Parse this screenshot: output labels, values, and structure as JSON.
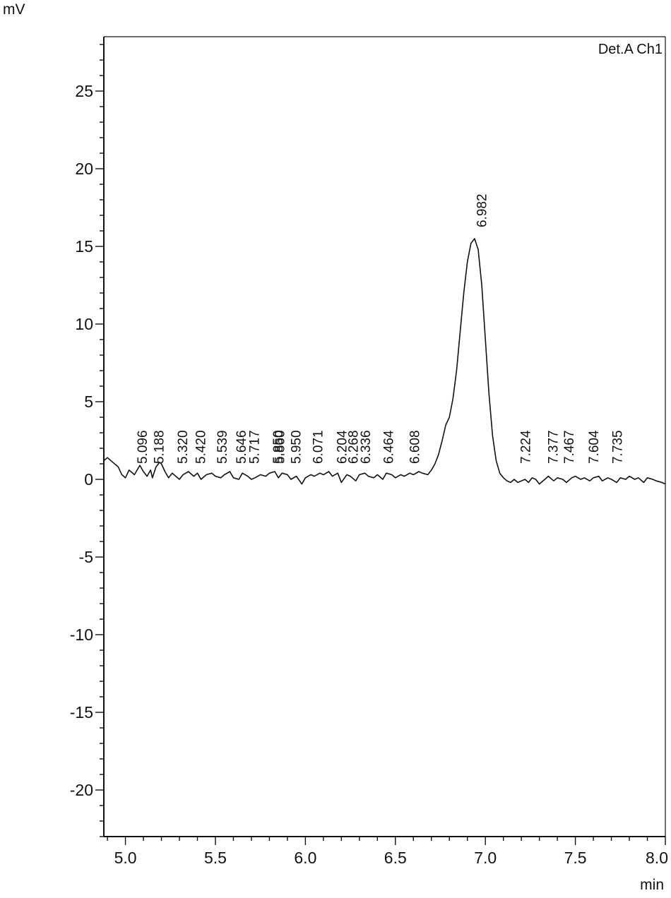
{
  "chart_data": {
    "type": "line",
    "title": "",
    "legend": "Det.A Ch1",
    "ylabel": "mV",
    "xlabel": "min",
    "xlim": [
      4.88,
      8.0
    ],
    "ylim": [
      -23.0,
      28.5
    ],
    "x_ticks": [
      "5.0",
      "5.5",
      "6.0",
      "6.5",
      "7.0",
      "7.5",
      "8.0"
    ],
    "y_ticks": [
      "25",
      "20",
      "15",
      "10",
      "5",
      "0",
      "-5",
      "-10",
      "-15",
      "-20"
    ],
    "peak_labels": [
      {
        "x": 5.096,
        "label": "5.096"
      },
      {
        "x": 5.188,
        "label": "5.188"
      },
      {
        "x": 5.32,
        "label": "5.320"
      },
      {
        "x": 5.42,
        "label": "5.420"
      },
      {
        "x": 5.539,
        "label": "5.539"
      },
      {
        "x": 5.646,
        "label": "5.646"
      },
      {
        "x": 5.717,
        "label": "5.717"
      },
      {
        "x": 5.85,
        "label": "5.850"
      },
      {
        "x": 5.86,
        "label": "5.860"
      },
      {
        "x": 5.95,
        "label": "5.950"
      },
      {
        "x": 6.071,
        "label": "6.071"
      },
      {
        "x": 6.204,
        "label": "6.204"
      },
      {
        "x": 6.268,
        "label": "6.268"
      },
      {
        "x": 6.336,
        "label": "6.336"
      },
      {
        "x": 6.464,
        "label": "6.464"
      },
      {
        "x": 6.608,
        "label": "6.608"
      },
      {
        "x": 6.982,
        "label": "6.982",
        "main": true
      },
      {
        "x": 7.224,
        "label": "7.224"
      },
      {
        "x": 7.377,
        "label": "7.377"
      },
      {
        "x": 7.467,
        "label": "7.467"
      },
      {
        "x": 7.604,
        "label": "7.604"
      },
      {
        "x": 7.735,
        "label": "7.735"
      }
    ],
    "series": [
      {
        "x": [
          4.88,
          4.9,
          4.93,
          4.96,
          4.98,
          5.0,
          5.02,
          5.05,
          5.08,
          5.1,
          5.12,
          5.14,
          5.15,
          5.17,
          5.19,
          5.2,
          5.22,
          5.24,
          5.26,
          5.28,
          5.3,
          5.32,
          5.35,
          5.38,
          5.4,
          5.42,
          5.45,
          5.48,
          5.5,
          5.53,
          5.55,
          5.58,
          5.6,
          5.63,
          5.65,
          5.68,
          5.7,
          5.72,
          5.75,
          5.78,
          5.8,
          5.83,
          5.85,
          5.87,
          5.9,
          5.92,
          5.95,
          5.98,
          6.0,
          6.03,
          6.05,
          6.08,
          6.1,
          6.13,
          6.15,
          6.18,
          6.2,
          6.23,
          6.25,
          6.28,
          6.3,
          6.33,
          6.35,
          6.38,
          6.4,
          6.43,
          6.45,
          6.48,
          6.5,
          6.53,
          6.55,
          6.58,
          6.6,
          6.63,
          6.65,
          6.68,
          6.7,
          6.72,
          6.74,
          6.76,
          6.78,
          6.8,
          6.82,
          6.84,
          6.86,
          6.88,
          6.9,
          6.92,
          6.94,
          6.96,
          6.98,
          7.0,
          7.02,
          7.04,
          7.06,
          7.08,
          7.1,
          7.12,
          7.14,
          7.16,
          7.18,
          7.2,
          7.22,
          7.24,
          7.26,
          7.28,
          7.3,
          7.33,
          7.35,
          7.38,
          7.4,
          7.43,
          7.45,
          7.48,
          7.5,
          7.53,
          7.55,
          7.58,
          7.6,
          7.63,
          7.65,
          7.68,
          7.7,
          7.73,
          7.75,
          7.78,
          7.8,
          7.83,
          7.85,
          7.88,
          7.9,
          7.93,
          7.95,
          7.98,
          8.0
        ],
        "y": [
          1.2,
          1.4,
          1.1,
          0.8,
          0.3,
          0.1,
          0.6,
          0.3,
          0.9,
          0.5,
          0.2,
          0.6,
          0.1,
          0.8,
          1.1,
          1.0,
          0.5,
          0.1,
          0.4,
          0.2,
          0.0,
          0.3,
          0.5,
          0.2,
          0.4,
          0.0,
          0.3,
          0.4,
          0.2,
          0.1,
          0.3,
          0.5,
          0.1,
          0.0,
          0.4,
          0.2,
          0.0,
          0.1,
          0.3,
          0.2,
          0.4,
          0.5,
          0.1,
          0.4,
          0.3,
          0.0,
          0.2,
          -0.3,
          0.1,
          0.3,
          0.2,
          0.4,
          0.3,
          0.5,
          0.2,
          0.4,
          -0.2,
          0.3,
          0.2,
          -0.1,
          0.3,
          0.4,
          0.2,
          0.1,
          0.3,
          0.0,
          0.4,
          0.3,
          0.1,
          0.3,
          0.2,
          0.4,
          0.3,
          0.5,
          0.4,
          0.3,
          0.6,
          1.0,
          1.6,
          2.5,
          3.5,
          4.0,
          5.2,
          7.0,
          9.5,
          12.0,
          14.0,
          15.2,
          15.5,
          14.8,
          12.5,
          9.0,
          5.5,
          2.8,
          1.2,
          0.4,
          0.1,
          -0.1,
          -0.2,
          0.0,
          -0.2,
          -0.1,
          0.0,
          -0.2,
          0.1,
          0.0,
          -0.3,
          0.0,
          0.2,
          -0.1,
          0.1,
          0.0,
          -0.2,
          0.1,
          0.2,
          0.0,
          0.1,
          -0.1,
          0.1,
          0.2,
          -0.1,
          0.1,
          0.0,
          -0.2,
          0.1,
          0.0,
          0.2,
          0.0,
          0.1,
          -0.2,
          0.1,
          0.0,
          -0.1,
          -0.2,
          -0.3
        ]
      }
    ]
  }
}
